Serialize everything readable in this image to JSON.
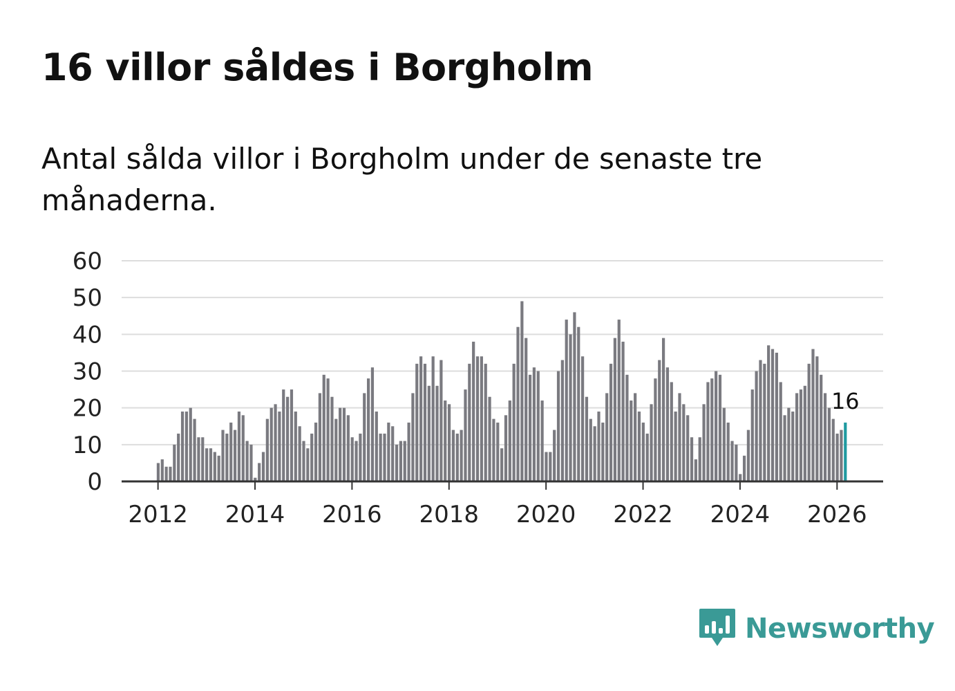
{
  "header": {
    "title": "16 villor såldes i Borgholm",
    "subtitle": "Antal sålda villor i Borgholm under de senaste tre månaderna."
  },
  "brand": {
    "name": "Newsworthy",
    "color": "#3a9a96",
    "icon": "bar-chart-speech-bubble-icon"
  },
  "colors": {
    "bar": "#7a7a80",
    "highlight": "#1f9aa0",
    "grid": "#dddddd",
    "axis": "#333333"
  },
  "chart_data": {
    "type": "bar",
    "title": "16 villor såldes i Borgholm",
    "subtitle": "Antal sålda villor i Borgholm under de senaste tre månaderna.",
    "xlabel": "",
    "ylabel": "",
    "start": "2012-01",
    "frequency": "monthly",
    "xlim": [
      2011.25,
      2026.95
    ],
    "ylim": [
      0,
      60
    ],
    "y_ticks": [
      "0",
      "10",
      "20",
      "30",
      "40",
      "50",
      "60"
    ],
    "x_ticks": [
      "2012",
      "2014",
      "2016",
      "2018",
      "2020",
      "2022",
      "2024",
      "2026"
    ],
    "grid": true,
    "highlight_label": "16",
    "series": [
      {
        "name": "Sålda villor",
        "values": [
          5,
          6,
          4,
          4,
          10,
          13,
          19,
          19,
          20,
          17,
          12,
          12,
          9,
          9,
          8,
          7,
          14,
          13,
          16,
          14,
          19,
          18,
          11,
          10,
          1,
          5,
          8,
          17,
          20,
          21,
          19,
          25,
          23,
          25,
          19,
          15,
          11,
          9,
          13,
          16,
          24,
          29,
          28,
          23,
          17,
          20,
          20,
          18,
          12,
          11,
          13,
          24,
          28,
          31,
          19,
          13,
          13,
          16,
          15,
          10,
          11,
          11,
          16,
          24,
          32,
          34,
          32,
          26,
          34,
          26,
          33,
          22,
          21,
          14,
          13,
          14,
          25,
          32,
          38,
          34,
          34,
          32,
          23,
          17,
          16,
          9,
          18,
          22,
          32,
          42,
          49,
          39,
          29,
          31,
          30,
          22,
          8,
          8,
          14,
          30,
          33,
          44,
          40,
          46,
          42,
          34,
          23,
          17,
          15,
          19,
          16,
          24,
          32,
          39,
          44,
          38,
          29,
          22,
          24,
          19,
          16,
          13,
          21,
          28,
          33,
          39,
          31,
          27,
          19,
          24,
          21,
          18,
          12,
          6,
          12,
          21,
          27,
          28,
          30,
          29,
          20,
          16,
          11,
          10,
          2,
          7,
          14,
          25,
          30,
          33,
          32,
          37,
          36,
          35,
          27,
          18,
          20,
          19,
          24,
          25,
          26,
          32,
          36,
          34,
          29,
          24,
          20,
          17,
          13,
          14,
          16
        ]
      }
    ]
  }
}
